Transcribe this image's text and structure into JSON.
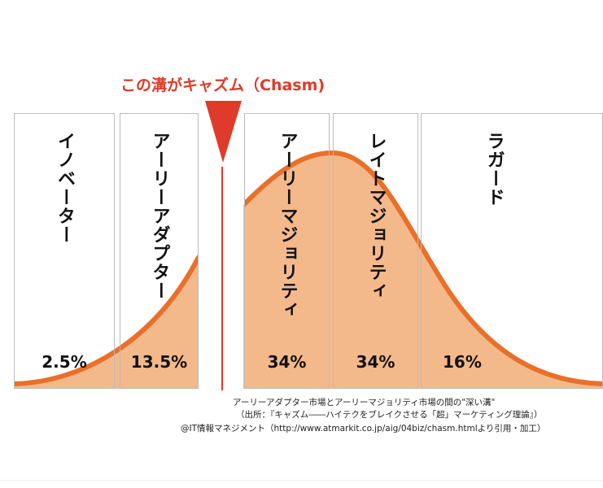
{
  "title": "この溝がキャズム（Chasm)",
  "segments": [
    {
      "label": "イノベーター",
      "percent": "2.5%"
    },
    {
      "label": "アーリーアダプター",
      "percent": "13.5%"
    },
    {
      "label": "アーリーマジョリティ",
      "percent": "34%"
    },
    {
      "label": "レイトマジョリティ",
      "percent": "34%"
    },
    {
      "label": "ラガード",
      "percent": "16%"
    }
  ],
  "captions": {
    "line1": "アーリーアダプター市場とアーリーマジョリティ市場の間の\"深い溝\"",
    "line2": "（出所：『キャズム――ハイテクをブレイクさせる「超」マーケティング理論』）",
    "line3": "@IT情報マネジメント（http://www.atmarkit.co.jp/aig/04biz/chasm.htmlより引用・加工）"
  },
  "colors": {
    "curve": "#e8702a",
    "fill": "#f4b98a",
    "chasm": "#e03a2a"
  }
}
